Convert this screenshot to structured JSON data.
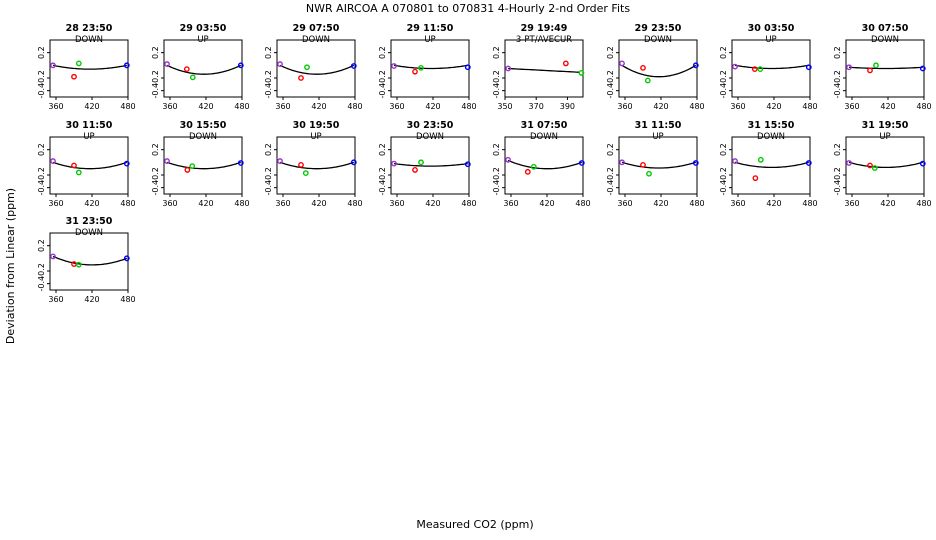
{
  "title": "NWR   AIRCOA A   070801 to 070831   4-Hourly 2-nd Order Fits",
  "xlabel": "Measured CO2 (ppm)",
  "ylabel": "Deviation from Linear (ppm)",
  "colors": {
    "red": "#ff0000",
    "green": "#00cc00",
    "blue": "#0000ff",
    "purple": "#9933cc",
    "curve": "#000000"
  },
  "chart_data": {
    "type": "scatter",
    "title": "NWR   AIRCOA A   070801 to 070831   4-Hourly 2-nd Order Fits",
    "xlabel": "Measured CO2 (ppm)",
    "ylabel": "Deviation from Linear (ppm)",
    "grid": false,
    "panels": [
      {
        "title": "28 23:50",
        "subtitle": "DOWN",
        "xlim": [
          350,
          480
        ],
        "ylim": [
          -0.5,
          0.4
        ],
        "xticks": [
          360,
          420,
          480
        ],
        "yticks": [
          0.2,
          -0.2,
          -0.4
        ],
        "curve": [
          [
            355,
            0.0
          ],
          [
            415,
            -0.06
          ],
          [
            478,
            0.0
          ]
        ],
        "points": [
          {
            "x": 355,
            "y": 0.0,
            "c": "purple"
          },
          {
            "x": 390,
            "y": -0.18,
            "c": "red"
          },
          {
            "x": 398,
            "y": 0.03,
            "c": "green"
          },
          {
            "x": 478,
            "y": 0.0,
            "c": "blue"
          }
        ]
      },
      {
        "title": "29 03:50",
        "subtitle": "UP",
        "xlim": [
          350,
          480
        ],
        "ylim": [
          -0.5,
          0.4
        ],
        "xticks": [
          360,
          420,
          480
        ],
        "yticks": [
          0.2,
          -0.2,
          -0.4
        ],
        "curve": [
          [
            355,
            0.0
          ],
          [
            415,
            -0.14
          ],
          [
            478,
            0.0
          ]
        ],
        "points": [
          {
            "x": 355,
            "y": 0.02,
            "c": "purple"
          },
          {
            "x": 388,
            "y": -0.06,
            "c": "red"
          },
          {
            "x": 398,
            "y": -0.19,
            "c": "green"
          },
          {
            "x": 478,
            "y": 0.0,
            "c": "blue"
          }
        ]
      },
      {
        "title": "29 07:50",
        "subtitle": "DOWN",
        "xlim": [
          350,
          480
        ],
        "ylim": [
          -0.5,
          0.4
        ],
        "xticks": [
          360,
          420,
          480
        ],
        "yticks": [
          0.2,
          -0.2,
          -0.4
        ],
        "curve": [
          [
            355,
            0.0
          ],
          [
            415,
            -0.14
          ],
          [
            478,
            0.0
          ]
        ],
        "points": [
          {
            "x": 355,
            "y": 0.02,
            "c": "purple"
          },
          {
            "x": 390,
            "y": -0.2,
            "c": "red"
          },
          {
            "x": 400,
            "y": -0.03,
            "c": "green"
          },
          {
            "x": 478,
            "y": -0.01,
            "c": "blue"
          }
        ]
      },
      {
        "title": "29 11:50",
        "subtitle": "UP",
        "xlim": [
          350,
          480
        ],
        "ylim": [
          -0.5,
          0.4
        ],
        "xticks": [
          360,
          420,
          480
        ],
        "yticks": [
          0.2,
          -0.2,
          -0.4
        ],
        "curve": [
          [
            355,
            0.0
          ],
          [
            415,
            -0.05
          ],
          [
            478,
            0.0
          ]
        ],
        "points": [
          {
            "x": 355,
            "y": -0.01,
            "c": "purple"
          },
          {
            "x": 390,
            "y": -0.1,
            "c": "red"
          },
          {
            "x": 400,
            "y": -0.04,
            "c": "green"
          },
          {
            "x": 478,
            "y": -0.03,
            "c": "blue"
          }
        ]
      },
      {
        "title": "29 19:49",
        "subtitle": "3-PT/AVECUR",
        "xlim": [
          350,
          400
        ],
        "ylim": [
          -0.5,
          0.4
        ],
        "xticks": [
          350,
          370,
          390
        ],
        "yticks": [
          0.2,
          -0.2,
          -0.4
        ],
        "curve": [
          [
            352,
            -0.05
          ],
          [
            375,
            -0.08
          ],
          [
            398,
            -0.11
          ]
        ],
        "points": [
          {
            "x": 352,
            "y": -0.05,
            "c": "purple"
          },
          {
            "x": 389,
            "y": 0.03,
            "c": "red"
          },
          {
            "x": 399,
            "y": -0.12,
            "c": "green"
          }
        ]
      },
      {
        "title": "29 23:50",
        "subtitle": "DOWN",
        "xlim": [
          350,
          480
        ],
        "ylim": [
          -0.5,
          0.4
        ],
        "xticks": [
          360,
          420,
          480
        ],
        "yticks": [
          0.2,
          -0.2,
          -0.4
        ],
        "curve": [
          [
            355,
            0.0
          ],
          [
            415,
            -0.18
          ],
          [
            478,
            0.0
          ]
        ],
        "points": [
          {
            "x": 355,
            "y": 0.03,
            "c": "purple"
          },
          {
            "x": 390,
            "y": -0.04,
            "c": "red"
          },
          {
            "x": 398,
            "y": -0.24,
            "c": "green"
          },
          {
            "x": 478,
            "y": 0.0,
            "c": "blue"
          }
        ]
      },
      {
        "title": "30 03:50",
        "subtitle": "UP",
        "xlim": [
          350,
          480
        ],
        "ylim": [
          -0.5,
          0.4
        ],
        "xticks": [
          360,
          420,
          480
        ],
        "yticks": [
          0.2,
          -0.2,
          -0.4
        ],
        "curve": [
          [
            355,
            0.0
          ],
          [
            415,
            -0.05
          ],
          [
            478,
            0.0
          ]
        ],
        "points": [
          {
            "x": 355,
            "y": -0.02,
            "c": "purple"
          },
          {
            "x": 388,
            "y": -0.06,
            "c": "red"
          },
          {
            "x": 397,
            "y": -0.06,
            "c": "green"
          },
          {
            "x": 478,
            "y": -0.03,
            "c": "blue"
          }
        ]
      },
      {
        "title": "30 07:50",
        "subtitle": "DOWN",
        "xlim": [
          350,
          480
        ],
        "ylim": [
          -0.5,
          0.4
        ],
        "xticks": [
          360,
          420,
          480
        ],
        "yticks": [
          0.2,
          -0.2,
          -0.4
        ],
        "curve": [
          [
            355,
            -0.03
          ],
          [
            415,
            -0.05
          ],
          [
            478,
            -0.03
          ]
        ],
        "points": [
          {
            "x": 355,
            "y": -0.03,
            "c": "purple"
          },
          {
            "x": 390,
            "y": -0.08,
            "c": "red"
          },
          {
            "x": 400,
            "y": 0.0,
            "c": "green"
          },
          {
            "x": 478,
            "y": -0.05,
            "c": "blue"
          }
        ]
      },
      {
        "title": "30 11:50",
        "subtitle": "UP",
        "xlim": [
          350,
          480
        ],
        "ylim": [
          -0.5,
          0.4
        ],
        "xticks": [
          360,
          420,
          480
        ],
        "yticks": [
          0.2,
          -0.2,
          -0.4
        ],
        "curve": [
          [
            355,
            0.0
          ],
          [
            415,
            -0.1
          ],
          [
            478,
            0.0
          ]
        ],
        "points": [
          {
            "x": 355,
            "y": 0.02,
            "c": "purple"
          },
          {
            "x": 390,
            "y": -0.05,
            "c": "red"
          },
          {
            "x": 398,
            "y": -0.16,
            "c": "green"
          },
          {
            "x": 478,
            "y": -0.02,
            "c": "blue"
          }
        ]
      },
      {
        "title": "30 15:50",
        "subtitle": "DOWN",
        "xlim": [
          350,
          480
        ],
        "ylim": [
          -0.5,
          0.4
        ],
        "xticks": [
          360,
          420,
          480
        ],
        "yticks": [
          0.2,
          -0.2,
          -0.4
        ],
        "curve": [
          [
            355,
            0.0
          ],
          [
            415,
            -0.1
          ],
          [
            478,
            0.0
          ]
        ],
        "points": [
          {
            "x": 355,
            "y": 0.02,
            "c": "purple"
          },
          {
            "x": 389,
            "y": -0.12,
            "c": "red"
          },
          {
            "x": 397,
            "y": -0.06,
            "c": "green"
          },
          {
            "x": 478,
            "y": -0.01,
            "c": "blue"
          }
        ]
      },
      {
        "title": "30 19:50",
        "subtitle": "UP",
        "xlim": [
          350,
          480
        ],
        "ylim": [
          -0.5,
          0.4
        ],
        "xticks": [
          360,
          420,
          480
        ],
        "yticks": [
          0.2,
          -0.2,
          -0.4
        ],
        "curve": [
          [
            355,
            0.0
          ],
          [
            415,
            -0.1
          ],
          [
            478,
            0.0
          ]
        ],
        "points": [
          {
            "x": 355,
            "y": 0.02,
            "c": "purple"
          },
          {
            "x": 390,
            "y": -0.04,
            "c": "red"
          },
          {
            "x": 398,
            "y": -0.17,
            "c": "green"
          },
          {
            "x": 478,
            "y": 0.0,
            "c": "blue"
          }
        ]
      },
      {
        "title": "30 23:50",
        "subtitle": "DOWN",
        "xlim": [
          350,
          480
        ],
        "ylim": [
          -0.5,
          0.4
        ],
        "xticks": [
          360,
          420,
          480
        ],
        "yticks": [
          0.2,
          -0.2,
          -0.4
        ],
        "curve": [
          [
            355,
            -0.02
          ],
          [
            415,
            -0.06
          ],
          [
            478,
            -0.02
          ]
        ],
        "points": [
          {
            "x": 355,
            "y": -0.02,
            "c": "purple"
          },
          {
            "x": 390,
            "y": -0.12,
            "c": "red"
          },
          {
            "x": 400,
            "y": 0.0,
            "c": "green"
          },
          {
            "x": 478,
            "y": -0.03,
            "c": "blue"
          }
        ]
      },
      {
        "title": "31 07:50",
        "subtitle": "DOWN",
        "xlim": [
          350,
          480
        ],
        "ylim": [
          -0.5,
          0.4
        ],
        "xticks": [
          360,
          420,
          480
        ],
        "yticks": [
          0.2,
          -0.2,
          -0.4
        ],
        "curve": [
          [
            355,
            0.03
          ],
          [
            415,
            -0.1
          ],
          [
            478,
            0.0
          ]
        ],
        "points": [
          {
            "x": 355,
            "y": 0.04,
            "c": "purple"
          },
          {
            "x": 388,
            "y": -0.15,
            "c": "red"
          },
          {
            "x": 398,
            "y": -0.07,
            "c": "green"
          },
          {
            "x": 478,
            "y": -0.01,
            "c": "blue"
          }
        ]
      },
      {
        "title": "31 11:50",
        "subtitle": "UP",
        "xlim": [
          350,
          480
        ],
        "ylim": [
          -0.5,
          0.4
        ],
        "xticks": [
          360,
          420,
          480
        ],
        "yticks": [
          0.2,
          -0.2,
          -0.4
        ],
        "curve": [
          [
            355,
            0.0
          ],
          [
            415,
            -0.09
          ],
          [
            478,
            0.0
          ]
        ],
        "points": [
          {
            "x": 355,
            "y": 0.0,
            "c": "purple"
          },
          {
            "x": 390,
            "y": -0.04,
            "c": "red"
          },
          {
            "x": 400,
            "y": -0.18,
            "c": "green"
          },
          {
            "x": 478,
            "y": -0.01,
            "c": "blue"
          }
        ]
      },
      {
        "title": "31 15:50",
        "subtitle": "DOWN",
        "xlim": [
          350,
          480
        ],
        "ylim": [
          -0.5,
          0.4
        ],
        "xticks": [
          360,
          420,
          480
        ],
        "yticks": [
          0.2,
          -0.2,
          -0.4
        ],
        "curve": [
          [
            355,
            0.0
          ],
          [
            415,
            -0.08
          ],
          [
            478,
            0.0
          ]
        ],
        "points": [
          {
            "x": 355,
            "y": 0.02,
            "c": "purple"
          },
          {
            "x": 389,
            "y": -0.25,
            "c": "red"
          },
          {
            "x": 398,
            "y": 0.04,
            "c": "green"
          },
          {
            "x": 478,
            "y": -0.01,
            "c": "blue"
          }
        ]
      },
      {
        "title": "31 19:50",
        "subtitle": "UP",
        "xlim": [
          350,
          480
        ],
        "ylim": [
          -0.5,
          0.4
        ],
        "xticks": [
          360,
          420,
          480
        ],
        "yticks": [
          0.2,
          -0.2,
          -0.4
        ],
        "curve": [
          [
            355,
            0.0
          ],
          [
            415,
            -0.08
          ],
          [
            478,
            0.0
          ]
        ],
        "points": [
          {
            "x": 355,
            "y": -0.01,
            "c": "purple"
          },
          {
            "x": 390,
            "y": -0.05,
            "c": "red"
          },
          {
            "x": 398,
            "y": -0.09,
            "c": "green"
          },
          {
            "x": 478,
            "y": -0.02,
            "c": "blue"
          }
        ]
      },
      {
        "title": "31 23:50",
        "subtitle": "DOWN",
        "xlim": [
          350,
          480
        ],
        "ylim": [
          -0.5,
          0.4
        ],
        "xticks": [
          360,
          420,
          480
        ],
        "yticks": [
          0.2,
          -0.2,
          -0.4
        ],
        "curve": [
          [
            355,
            0.03
          ],
          [
            410,
            -0.1
          ],
          [
            478,
            0.0
          ]
        ],
        "points": [
          {
            "x": 355,
            "y": 0.03,
            "c": "purple"
          },
          {
            "x": 390,
            "y": -0.09,
            "c": "red"
          },
          {
            "x": 398,
            "y": -0.1,
            "c": "green"
          },
          {
            "x": 478,
            "y": 0.0,
            "c": "blue"
          }
        ]
      }
    ]
  }
}
